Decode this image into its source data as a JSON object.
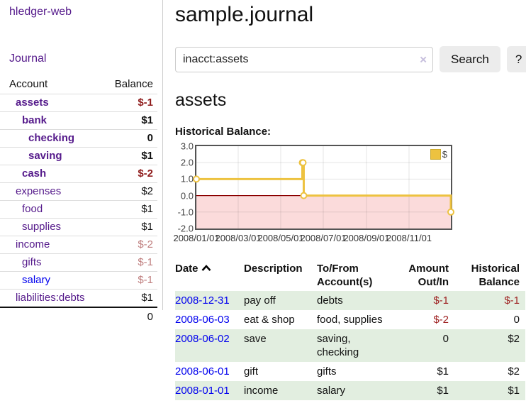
{
  "sidebar": {
    "app_title": "hledger-web",
    "journal_link": "Journal",
    "accounts_table": {
      "headers": {
        "account": "Account",
        "balance": "Balance"
      },
      "rows": [
        {
          "name": "assets",
          "balance": "$-1",
          "level": 1,
          "matched": true,
          "neg": "strong"
        },
        {
          "name": "bank",
          "balance": "$1",
          "level": 2,
          "matched": true
        },
        {
          "name": "checking",
          "balance": "0",
          "level": 3,
          "matched": true
        },
        {
          "name": "saving",
          "balance": "$1",
          "level": 3,
          "matched": true
        },
        {
          "name": "cash",
          "balance": "$-2",
          "level": 2,
          "matched": true,
          "neg": "strong"
        },
        {
          "name": "expenses",
          "balance": "$2",
          "level": 1
        },
        {
          "name": "food",
          "balance": "$1",
          "level": 2
        },
        {
          "name": "supplies",
          "balance": "$1",
          "level": 2
        },
        {
          "name": "income",
          "balance": "$-2",
          "level": 1,
          "neg": "dim"
        },
        {
          "name": "gifts",
          "balance": "$-1",
          "level": 2,
          "neg": "dim"
        },
        {
          "name": "salary",
          "balance": "$-1",
          "level": 2,
          "neg": "dim",
          "link_color": "blue"
        },
        {
          "name": "liabilities:debts",
          "balance": "$1",
          "level": 1
        }
      ],
      "total": "0"
    }
  },
  "main": {
    "title": "sample.journal",
    "search": {
      "value": "inacct:assets",
      "clear_icon": "×",
      "button_label": "Search",
      "help_label": "?"
    },
    "account_heading": "assets",
    "chart_section_label": "Historical Balance:"
  },
  "chart_data": {
    "type": "line",
    "step": true,
    "title": "Historical Balance:",
    "legend": [
      {
        "name": "$",
        "color": "#edc240"
      }
    ],
    "xrange": [
      "2008-01-01",
      "2008-12-31"
    ],
    "ylim": [
      -2,
      3
    ],
    "series": [
      {
        "name": "$",
        "points": [
          {
            "x": "2008-01-01",
            "y": 1
          },
          {
            "x": "2008-06-01",
            "y": 2
          },
          {
            "x": "2008-06-02",
            "y": 2
          },
          {
            "x": "2008-06-03",
            "y": 0
          },
          {
            "x": "2008-12-31",
            "y": -1
          }
        ]
      }
    ],
    "yticks": [
      {
        "label": "3.0",
        "value": 3
      },
      {
        "label": "2.0",
        "value": 2
      },
      {
        "label": "1.0",
        "value": 1
      },
      {
        "label": "0.0",
        "value": 0
      },
      {
        "label": "-1.0",
        "value": -1
      },
      {
        "label": "-2.0",
        "value": -2
      }
    ],
    "xticks": [
      {
        "label": "2008/01/01",
        "date": "2008-01-01"
      },
      {
        "label": "2008/03/01",
        "date": "2008-03-01"
      },
      {
        "label": "2008/05/01",
        "date": "2008-05-01"
      },
      {
        "label": "2008/07/01",
        "date": "2008-07-01"
      },
      {
        "label": "2008/09/01",
        "date": "2008-09-01"
      },
      {
        "label": "2008/11/01",
        "date": "2008-11-01"
      }
    ],
    "grid": true,
    "legend_position": "top-right",
    "negative_region": true
  },
  "register_table": {
    "headers": {
      "date": "Date",
      "description": "Description",
      "accounts": "To/From Account(s)",
      "amount": "Amount Out/In",
      "balance": "Historical Balance"
    },
    "sort": {
      "column": "date",
      "direction": "ascending"
    },
    "rows": [
      {
        "date": "2008-12-31",
        "description": "pay off",
        "accounts": "debts",
        "amount": "$-1",
        "balance": "$-1"
      },
      {
        "date": "2008-06-03",
        "description": "eat & shop",
        "accounts": "food, supplies",
        "amount": "$-2",
        "balance": "0"
      },
      {
        "date": "2008-06-02",
        "description": "save",
        "accounts": "saving, checking",
        "amount": "0",
        "balance": "$2"
      },
      {
        "date": "2008-06-01",
        "description": "gift",
        "accounts": "gifts",
        "amount": "$1",
        "balance": "$2"
      },
      {
        "date": "2008-01-01",
        "description": "income",
        "accounts": "salary",
        "amount": "$1",
        "balance": "$1"
      }
    ]
  },
  "colors": {
    "link_purple": "#551a8b",
    "link_blue": "#0000ee",
    "negative_strong": "#8f1c1c",
    "negative_dim": "#bf7e7e",
    "register_negative": "#9e2121",
    "row_green": "#e2eee0",
    "chart_line": "#edc240",
    "chart_negative_fill": "#fbdbdb",
    "zero_line": "#8b0000",
    "gridline": "#dcdcdc",
    "chart_border": "#545454"
  }
}
